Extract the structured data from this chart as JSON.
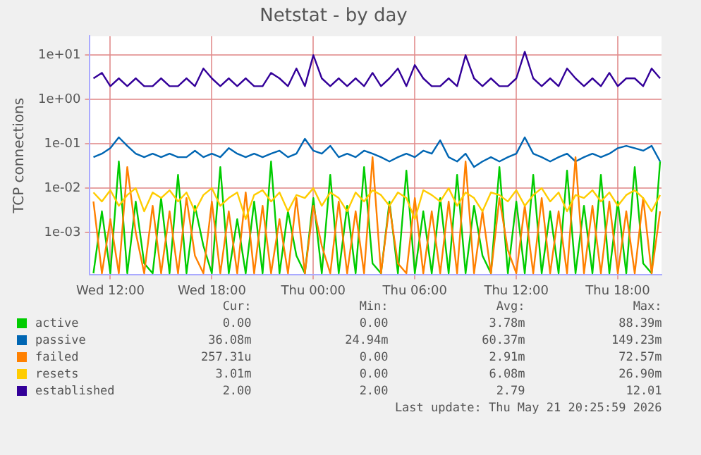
{
  "chart_data": {
    "type": "line",
    "title": "Netstat - by day",
    "ylabel": "TCP connections",
    "log": "y",
    "grid": true,
    "legend": "bottom",
    "marker": "none",
    "line_style": "solid",
    "xlim": [
      "2026-05-20T10:45",
      "2026-05-21T20:35"
    ],
    "xticks": [
      {
        "value": "2026-05-20T12:00",
        "label": "Wed 12:00"
      },
      {
        "value": "2026-05-20T18:00",
        "label": "Wed 18:00"
      },
      {
        "value": "2026-05-21T00:00",
        "label": "Thu 00:00"
      },
      {
        "value": "2026-05-21T06:00",
        "label": "Thu 06:00"
      },
      {
        "value": "2026-05-21T12:00",
        "label": "Thu 12:00"
      },
      {
        "value": "2026-05-21T18:00",
        "label": "Thu 18:00"
      }
    ],
    "ylim": [
      0.00011,
      27
    ],
    "yticks": [
      {
        "value": 0.001,
        "label": "1e-03"
      },
      {
        "value": 0.01,
        "label": "1e-02"
      },
      {
        "value": 0.1,
        "label": "1e-01"
      },
      {
        "value": 1,
        "label": "1e+00"
      },
      {
        "value": 10,
        "label": "1e+01"
      }
    ],
    "x": [
      "2026-05-20T11:00",
      "2026-05-20T11:30",
      "2026-05-20T12:00",
      "2026-05-20T12:30",
      "2026-05-20T13:00",
      "2026-05-20T13:30",
      "2026-05-20T14:00",
      "2026-05-20T14:30",
      "2026-05-20T15:00",
      "2026-05-20T15:30",
      "2026-05-20T16:00",
      "2026-05-20T16:30",
      "2026-05-20T17:00",
      "2026-05-20T17:30",
      "2026-05-20T18:00",
      "2026-05-20T18:30",
      "2026-05-20T19:00",
      "2026-05-20T19:30",
      "2026-05-20T20:00",
      "2026-05-20T20:30",
      "2026-05-20T21:00",
      "2026-05-20T21:30",
      "2026-05-20T22:00",
      "2026-05-20T22:30",
      "2026-05-20T23:00",
      "2026-05-20T23:30",
      "2026-05-21T00:00",
      "2026-05-21T00:30",
      "2026-05-21T01:00",
      "2026-05-21T01:30",
      "2026-05-21T02:00",
      "2026-05-21T02:30",
      "2026-05-21T03:00",
      "2026-05-21T03:30",
      "2026-05-21T04:00",
      "2026-05-21T04:30",
      "2026-05-21T05:00",
      "2026-05-21T05:30",
      "2026-05-21T06:00",
      "2026-05-21T06:30",
      "2026-05-21T07:00",
      "2026-05-21T07:30",
      "2026-05-21T08:00",
      "2026-05-21T08:30",
      "2026-05-21T09:00",
      "2026-05-21T09:30",
      "2026-05-21T10:00",
      "2026-05-21T10:30",
      "2026-05-21T11:00",
      "2026-05-21T11:30",
      "2026-05-21T12:00",
      "2026-05-21T12:30",
      "2026-05-21T13:00",
      "2026-05-21T13:30",
      "2026-05-21T14:00",
      "2026-05-21T14:30",
      "2026-05-21T15:00",
      "2026-05-21T15:30",
      "2026-05-21T16:00",
      "2026-05-21T16:30",
      "2026-05-21T17:00",
      "2026-05-21T17:30",
      "2026-05-21T18:00",
      "2026-05-21T18:30",
      "2026-05-21T19:00",
      "2026-05-21T19:30",
      "2026-05-21T20:00",
      "2026-05-21T20:30"
    ],
    "series": [
      {
        "name": "active",
        "color": "#00cc00",
        "values": [
          0.00012,
          0.003,
          0.00012,
          0.04,
          0.00012,
          0.005,
          0.0002,
          0.00012,
          0.006,
          0.00012,
          0.02,
          0.00012,
          0.004,
          0.0005,
          0.00012,
          0.03,
          0.00012,
          0.002,
          0.00012,
          0.005,
          0.00012,
          0.04,
          0.00012,
          0.003,
          0.0003,
          0.00012,
          0.006,
          0.00012,
          0.02,
          0.00012,
          0.004,
          0.00012,
          0.03,
          0.0002,
          0.00012,
          0.005,
          0.00012,
          0.025,
          0.00012,
          0.003,
          0.00012,
          0.006,
          0.00012,
          0.02,
          0.00012,
          0.004,
          0.0003,
          0.00012,
          0.03,
          0.00012,
          0.005,
          0.00012,
          0.02,
          0.00012,
          0.003,
          0.00012,
          0.025,
          0.00012,
          0.004,
          0.00012,
          0.02,
          0.00012,
          0.005,
          0.00012,
          0.03,
          0.0002,
          0.00012,
          0.04
        ]
      },
      {
        "name": "passive",
        "color": "#0066b3",
        "values": [
          0.05,
          0.06,
          0.08,
          0.14,
          0.09,
          0.06,
          0.05,
          0.06,
          0.05,
          0.06,
          0.05,
          0.05,
          0.07,
          0.05,
          0.06,
          0.05,
          0.08,
          0.06,
          0.05,
          0.06,
          0.05,
          0.06,
          0.07,
          0.05,
          0.06,
          0.13,
          0.07,
          0.06,
          0.09,
          0.05,
          0.06,
          0.05,
          0.07,
          0.06,
          0.05,
          0.04,
          0.05,
          0.06,
          0.05,
          0.07,
          0.06,
          0.12,
          0.05,
          0.04,
          0.06,
          0.03,
          0.04,
          0.05,
          0.04,
          0.05,
          0.06,
          0.14,
          0.06,
          0.05,
          0.04,
          0.05,
          0.06,
          0.04,
          0.05,
          0.06,
          0.05,
          0.06,
          0.08,
          0.09,
          0.08,
          0.07,
          0.09,
          0.04
        ]
      },
      {
        "name": "failed",
        "color": "#ff8000",
        "values": [
          0.005,
          0.00012,
          0.002,
          0.00012,
          0.03,
          0.001,
          0.00012,
          0.004,
          0.00012,
          0.003,
          0.00012,
          0.006,
          0.0003,
          0.00012,
          0.005,
          0.00012,
          0.003,
          0.00012,
          0.008,
          0.00012,
          0.004,
          0.00012,
          0.002,
          0.00012,
          0.006,
          0.00012,
          0.004,
          0.0005,
          0.00012,
          0.005,
          0.00012,
          0.003,
          0.00012,
          0.05,
          0.00012,
          0.004,
          0.0002,
          0.00012,
          0.006,
          0.00012,
          0.003,
          0.00012,
          0.005,
          0.00012,
          0.04,
          0.00012,
          0.003,
          0.00012,
          0.006,
          0.0004,
          0.00012,
          0.004,
          0.00012,
          0.006,
          0.00012,
          0.003,
          0.00012,
          0.05,
          0.00012,
          0.004,
          0.00012,
          0.005,
          0.00012,
          0.003,
          0.00012,
          0.006,
          0.00012,
          0.003
        ]
      },
      {
        "name": "resets",
        "color": "#ffcc00",
        "values": [
          0.008,
          0.005,
          0.009,
          0.004,
          0.007,
          0.01,
          0.003,
          0.008,
          0.006,
          0.009,
          0.005,
          0.008,
          0.003,
          0.007,
          0.01,
          0.004,
          0.006,
          0.008,
          0.002,
          0.007,
          0.009,
          0.005,
          0.008,
          0.003,
          0.007,
          0.006,
          0.01,
          0.004,
          0.008,
          0.006,
          0.003,
          0.008,
          0.005,
          0.009,
          0.007,
          0.004,
          0.008,
          0.006,
          0.002,
          0.009,
          0.007,
          0.005,
          0.01,
          0.004,
          0.008,
          0.006,
          0.003,
          0.008,
          0.007,
          0.005,
          0.009,
          0.004,
          0.007,
          0.01,
          0.005,
          0.008,
          0.003,
          0.007,
          0.006,
          0.009,
          0.005,
          0.008,
          0.004,
          0.007,
          0.009,
          0.006,
          0.003,
          0.007
        ]
      },
      {
        "name": "established",
        "color": "#330099",
        "values": [
          3,
          4,
          2,
          3,
          2,
          3,
          2,
          2,
          3,
          2,
          2,
          3,
          2,
          5,
          3,
          2,
          3,
          2,
          3,
          2,
          2,
          4,
          3,
          2,
          5,
          2,
          10,
          3,
          2,
          3,
          2,
          3,
          2,
          4,
          2,
          3,
          5,
          2,
          6,
          3,
          2,
          2,
          3,
          2,
          10,
          3,
          2,
          3,
          2,
          2,
          3,
          12,
          3,
          2,
          3,
          2,
          5,
          3,
          2,
          3,
          2,
          4,
          2,
          3,
          3,
          2,
          5,
          3
        ]
      }
    ],
    "annotations": [
      "Cur:",
      "Min:",
      "Avg:",
      "Max:",
      "0.00",
      "0.00",
      "3.78m",
      "88.39m",
      "36.08m",
      "24.94m",
      "60.37m",
      "149.23m",
      "257.31u",
      "0.00",
      "2.91m",
      "72.57m",
      "3.01m",
      "0.00",
      "6.08m",
      "26.90m",
      "2.00",
      "2.00",
      "2.79",
      "12.01",
      "Last update: Thu May 21 20:25:59 2026"
    ]
  }
}
